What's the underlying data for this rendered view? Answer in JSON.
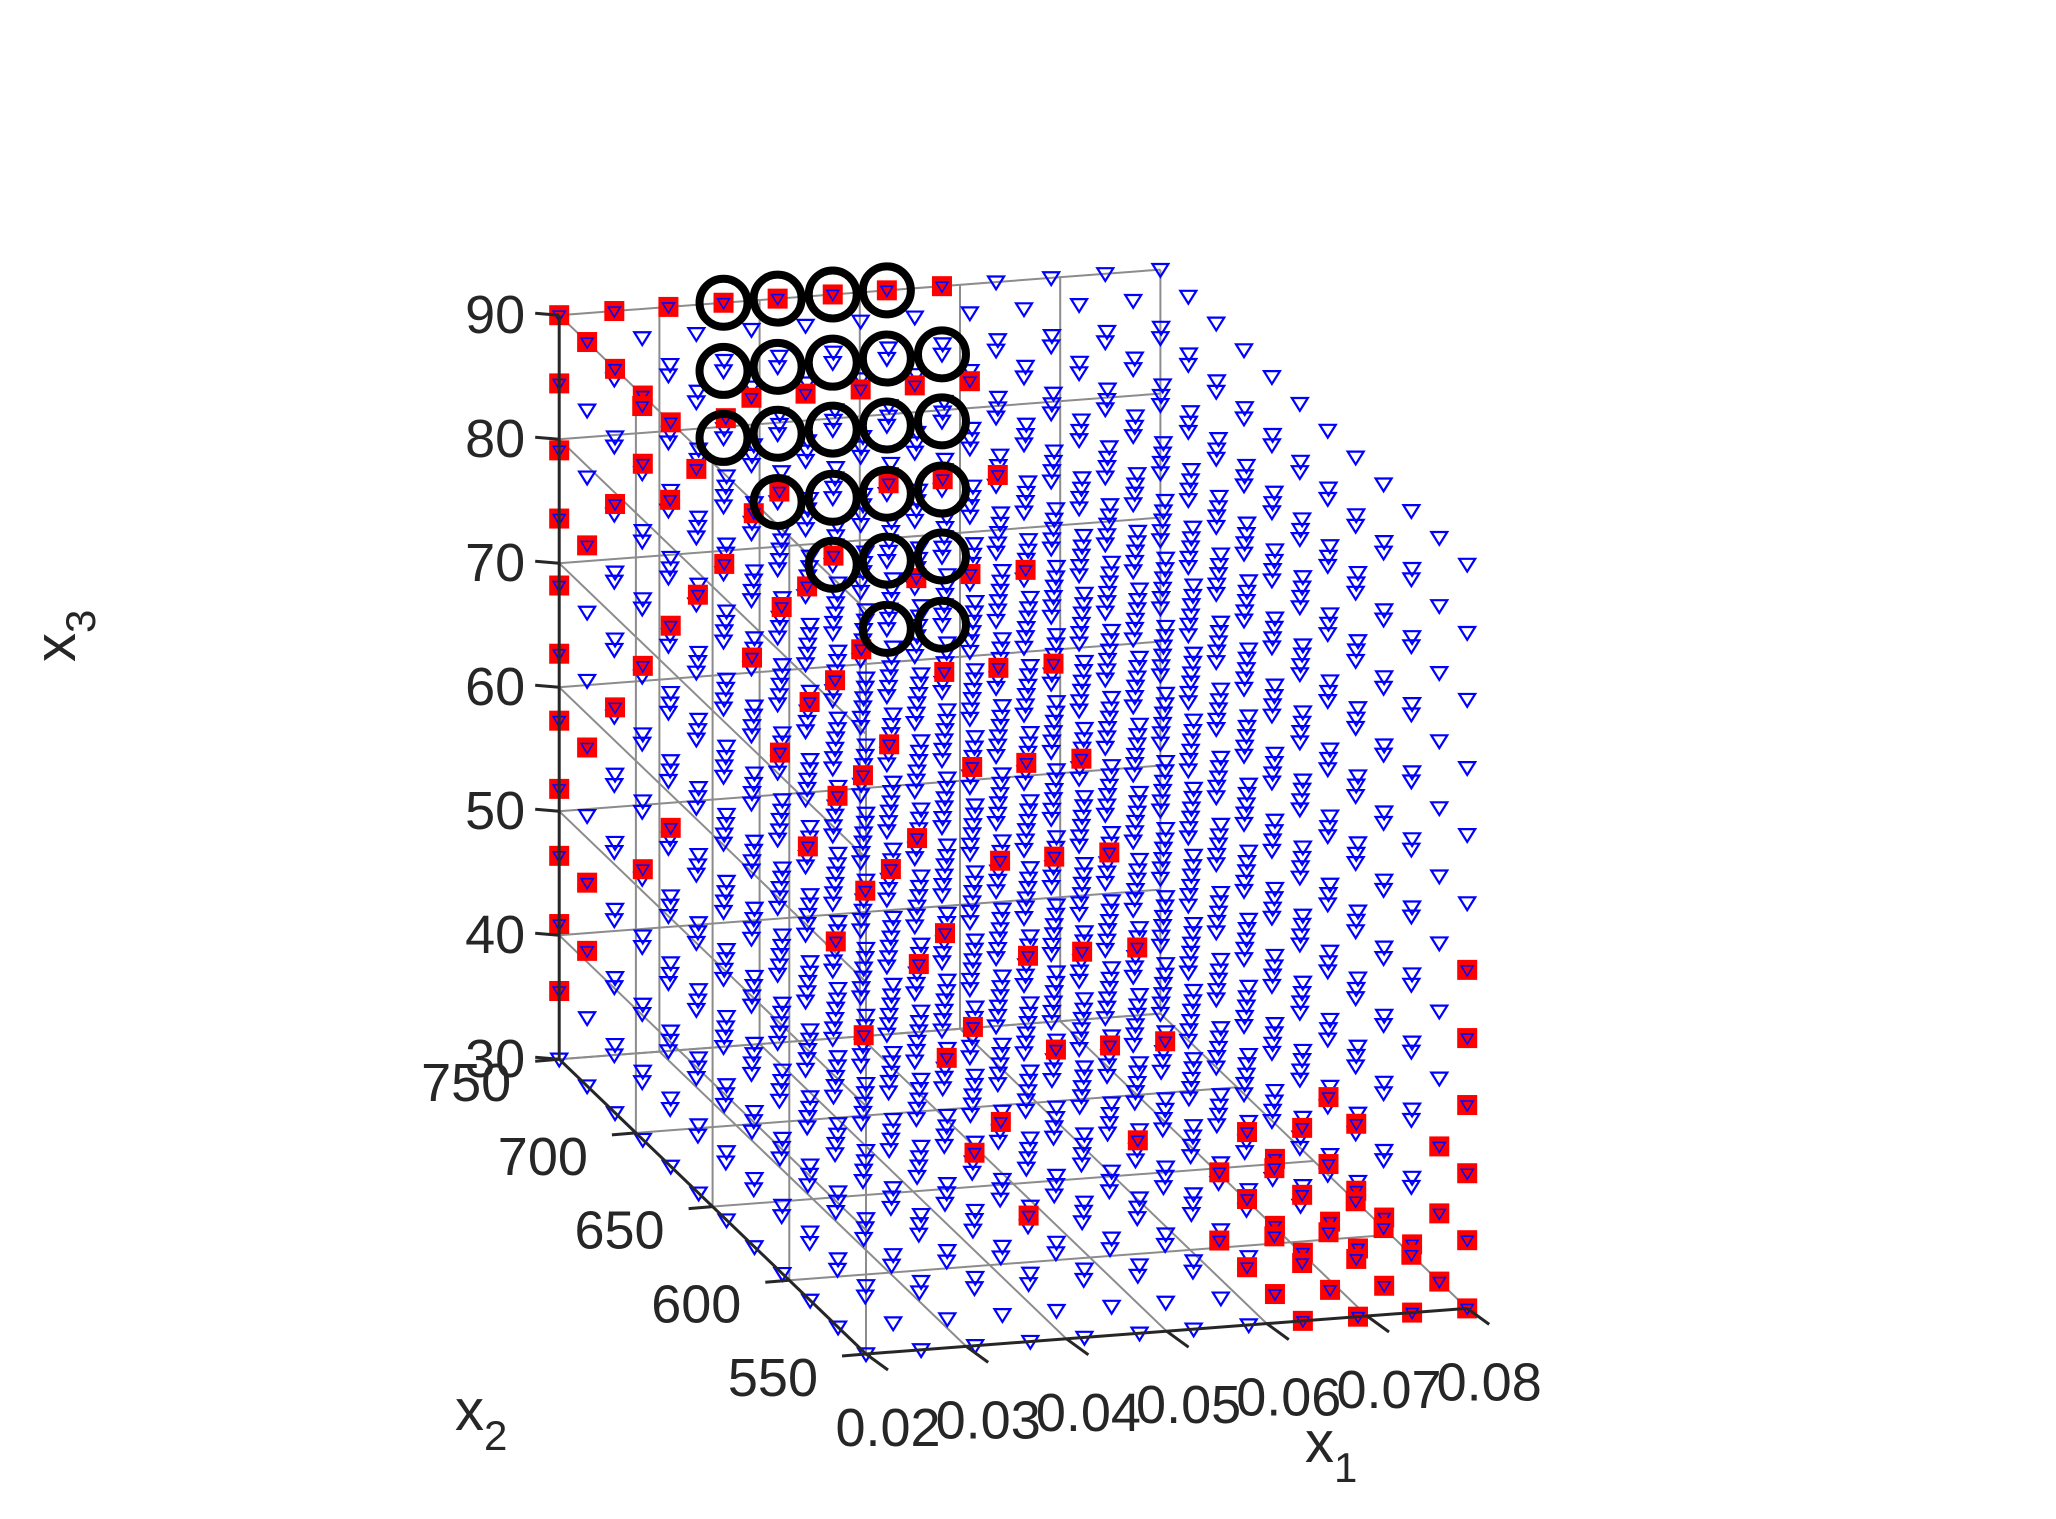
{
  "chart_data": {
    "type": "scatter",
    "projection": "3d",
    "grid": true,
    "axes": {
      "x1": {
        "label": "x",
        "label_sub": "1",
        "range": [
          0.02,
          0.08
        ],
        "ticks": [
          0.02,
          0.03,
          0.04,
          0.05,
          0.06,
          0.07,
          0.08
        ],
        "tick_labels": [
          "0.02",
          "0.03",
          "0.04",
          "0.05",
          "0.06",
          "0.07",
          "0.08"
        ]
      },
      "x2": {
        "label": "x",
        "label_sub": "2",
        "range": [
          550,
          750
        ],
        "ticks": [
          550,
          600,
          650,
          700,
          750
        ],
        "tick_labels": [
          "550",
          "600",
          "650",
          "700",
          "750"
        ]
      },
      "x3": {
        "label": "x",
        "label_sub": "3",
        "range": [
          30,
          90
        ],
        "ticks": [
          30,
          40,
          50,
          60,
          70,
          80,
          90
        ],
        "tick_labels": [
          "30",
          "40",
          "50",
          "60",
          "70",
          "80",
          "90"
        ]
      }
    },
    "sampling": {
      "grid_size": 12,
      "x1_values": [
        0.02,
        0.0255,
        0.0309,
        0.0364,
        0.0418,
        0.0473,
        0.0527,
        0.0582,
        0.0636,
        0.0691,
        0.0745,
        0.08
      ],
      "x2_values": [
        550,
        568.2,
        586.4,
        604.5,
        622.7,
        640.9,
        659.1,
        677.3,
        695.5,
        713.6,
        731.8,
        750
      ],
      "x3_values": [
        30,
        35.5,
        40.9,
        46.4,
        51.8,
        57.3,
        62.7,
        68.2,
        73.6,
        79.1,
        84.5,
        90
      ]
    },
    "series": [
      {
        "marker": "downward-triangle",
        "color": "#0000ff",
        "points": "all grid points (12 x 12 x 12)"
      },
      {
        "marker": "filled-square",
        "color": "#ff0000",
        "points_on_grid": [
          [
            0,
            11,
            11
          ],
          [
            0,
            11,
            10
          ],
          [
            0,
            11,
            9
          ],
          [
            0,
            11,
            8
          ],
          [
            0,
            11,
            7
          ],
          [
            0,
            11,
            6
          ],
          [
            0,
            11,
            5
          ],
          [
            0,
            11,
            4
          ],
          [
            0,
            11,
            3
          ],
          [
            0,
            11,
            2
          ],
          [
            0,
            11,
            1
          ],
          [
            0,
            10,
            11
          ],
          [
            0,
            10,
            8
          ],
          [
            0,
            10,
            5
          ],
          [
            0,
            10,
            3
          ],
          [
            0,
            10,
            2
          ],
          [
            0,
            9,
            11
          ],
          [
            0,
            9,
            9
          ],
          [
            0,
            9,
            6
          ],
          [
            0,
            8,
            11
          ],
          [
            0,
            8,
            10
          ],
          [
            0,
            8,
            7
          ],
          [
            0,
            8,
            4
          ],
          [
            0,
            7,
            11
          ],
          [
            0,
            7,
            8
          ],
          [
            0,
            7,
            5
          ],
          [
            1,
            11,
            11
          ],
          [
            1,
            10,
            10
          ],
          [
            1,
            9,
            9
          ],
          [
            1,
            8,
            8
          ],
          [
            1,
            7,
            11
          ],
          [
            1,
            6,
            10
          ],
          [
            1,
            5,
            9
          ],
          [
            1,
            4,
            8
          ],
          [
            1,
            3,
            7
          ],
          [
            1,
            2,
            6
          ],
          [
            2,
            11,
            11
          ],
          [
            2,
            10,
            9
          ],
          [
            2,
            9,
            8
          ],
          [
            2,
            8,
            7
          ],
          [
            2,
            7,
            6
          ],
          [
            2,
            6,
            5
          ],
          [
            2,
            5,
            4
          ],
          [
            2,
            4,
            3
          ],
          [
            3,
            11,
            11
          ],
          [
            3,
            10,
            10
          ],
          [
            3,
            9,
            9
          ],
          [
            3,
            8,
            8
          ],
          [
            3,
            7,
            7
          ],
          [
            3,
            6,
            6
          ],
          [
            3,
            5,
            5
          ],
          [
            3,
            4,
            4
          ],
          [
            3,
            3,
            3
          ],
          [
            3,
            2,
            2
          ],
          [
            4,
            11,
            11
          ],
          [
            4,
            10,
            10
          ],
          [
            4,
            9,
            8
          ],
          [
            4,
            8,
            7
          ],
          [
            4,
            7,
            6
          ],
          [
            4,
            6,
            5
          ],
          [
            4,
            5,
            4
          ],
          [
            4,
            4,
            3
          ],
          [
            4,
            3,
            2
          ],
          [
            4,
            2,
            1
          ],
          [
            5,
            11,
            11
          ],
          [
            5,
            10,
            10
          ],
          [
            5,
            9,
            9
          ],
          [
            5,
            8,
            8
          ],
          [
            5,
            7,
            7
          ],
          [
            5,
            6,
            6
          ],
          [
            5,
            5,
            5
          ],
          [
            5,
            4,
            4
          ],
          [
            5,
            3,
            3
          ],
          [
            6,
            11,
            11
          ],
          [
            6,
            10,
            10
          ],
          [
            6,
            9,
            9
          ],
          [
            6,
            8,
            8
          ],
          [
            6,
            7,
            7
          ],
          [
            6,
            6,
            6
          ],
          [
            6,
            5,
            5
          ],
          [
            6,
            4,
            4
          ],
          [
            6,
            3,
            3
          ],
          [
            6,
            2,
            2
          ],
          [
            7,
            11,
            11
          ],
          [
            7,
            10,
            10
          ],
          [
            7,
            9,
            9
          ],
          [
            7,
            8,
            8
          ],
          [
            7,
            7,
            7
          ],
          [
            7,
            6,
            6
          ],
          [
            7,
            5,
            5
          ],
          [
            7,
            4,
            4
          ],
          [
            7,
            3,
            3
          ],
          [
            8,
            3,
            0
          ],
          [
            8,
            2,
            0
          ],
          [
            8,
            1,
            0
          ],
          [
            8,
            0,
            0
          ],
          [
            8,
            3,
            1
          ],
          [
            8,
            2,
            1
          ],
          [
            8,
            1,
            1
          ],
          [
            8,
            0,
            1
          ],
          [
            8,
            2,
            2
          ],
          [
            8,
            1,
            2
          ],
          [
            9,
            3,
            0
          ],
          [
            9,
            2,
            0
          ],
          [
            9,
            1,
            0
          ],
          [
            9,
            0,
            0
          ],
          [
            9,
            3,
            1
          ],
          [
            9,
            2,
            1
          ],
          [
            9,
            1,
            1
          ],
          [
            9,
            0,
            1
          ],
          [
            9,
            2,
            2
          ],
          [
            10,
            3,
            0
          ],
          [
            10,
            2,
            0
          ],
          [
            10,
            1,
            0
          ],
          [
            10,
            0,
            0
          ],
          [
            10,
            3,
            1
          ],
          [
            10,
            2,
            1
          ],
          [
            10,
            1,
            1
          ],
          [
            10,
            0,
            1
          ],
          [
            10,
            3,
            2
          ],
          [
            10,
            2,
            2
          ],
          [
            11,
            4,
            0
          ],
          [
            11,
            3,
            0
          ],
          [
            11,
            2,
            0
          ],
          [
            11,
            1,
            0
          ],
          [
            11,
            0,
            0
          ],
          [
            11,
            0,
            1
          ],
          [
            11,
            0,
            2
          ],
          [
            11,
            0,
            3
          ],
          [
            11,
            0,
            4
          ],
          [
            11,
            0,
            5
          ],
          [
            11,
            1,
            1
          ],
          [
            11,
            1,
            2
          ]
        ]
      },
      {
        "marker": "open-circle",
        "color": "#000000",
        "points_on_grid": [
          [
            3,
            11,
            11
          ],
          [
            3,
            11,
            10
          ],
          [
            3,
            11,
            9
          ],
          [
            4,
            11,
            11
          ],
          [
            4,
            11,
            10
          ],
          [
            4,
            11,
            9
          ],
          [
            4,
            11,
            8
          ],
          [
            5,
            11,
            11
          ],
          [
            5,
            11,
            10
          ],
          [
            5,
            11,
            9
          ],
          [
            5,
            11,
            8
          ],
          [
            5,
            11,
            7
          ],
          [
            6,
            11,
            11
          ],
          [
            6,
            11,
            10
          ],
          [
            6,
            11,
            9
          ],
          [
            6,
            11,
            8
          ],
          [
            6,
            11,
            7
          ],
          [
            6,
            11,
            6
          ],
          [
            7,
            11,
            10
          ],
          [
            7,
            11,
            9
          ],
          [
            7,
            11,
            8
          ],
          [
            7,
            11,
            7
          ],
          [
            7,
            11,
            6
          ]
        ]
      }
    ]
  }
}
